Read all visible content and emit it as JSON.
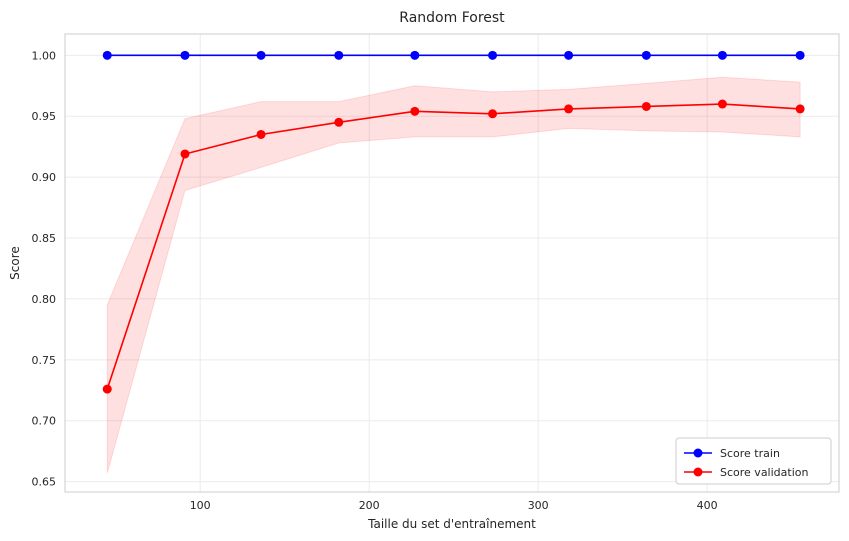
{
  "chart_data": {
    "type": "line",
    "title": "Random Forest",
    "xlabel": "Taille du set d'entraînement",
    "ylabel": "Score",
    "xlim": [
      20,
      478
    ],
    "ylim": [
      0.6415,
      1.0175
    ],
    "xticks": [
      100,
      200,
      300,
      400
    ],
    "xtick_labels": [
      "100",
      "200",
      "300",
      "400"
    ],
    "yticks": [
      0.65,
      0.7,
      0.75,
      0.8,
      0.85,
      0.9,
      0.95,
      1.0
    ],
    "ytick_labels": [
      "0.65",
      "0.70",
      "0.75",
      "0.80",
      "0.85",
      "0.90",
      "0.95",
      "1.00"
    ],
    "grid": true,
    "legend_position": "bottom-right",
    "x": [
      45,
      91,
      136,
      182,
      227,
      273,
      318,
      364,
      409,
      455
    ],
    "series": [
      {
        "name": "Score train",
        "color": "#0000ff",
        "marker": "circle",
        "values": [
          1.0,
          1.0,
          1.0,
          1.0,
          1.0,
          1.0,
          1.0,
          1.0,
          1.0,
          1.0
        ]
      },
      {
        "name": "Score validation",
        "color": "#ff0000",
        "marker": "circle",
        "values": [
          0.726,
          0.919,
          0.935,
          0.945,
          0.954,
          0.952,
          0.956,
          0.958,
          0.96,
          0.956
        ],
        "band_color": "#ff0000",
        "band_lower": [
          0.657,
          0.889,
          0.908,
          0.928,
          0.933,
          0.933,
          0.94,
          0.938,
          0.937,
          0.933
        ],
        "band_upper": [
          0.795,
          0.948,
          0.962,
          0.962,
          0.975,
          0.97,
          0.972,
          0.977,
          0.982,
          0.978
        ]
      }
    ]
  }
}
